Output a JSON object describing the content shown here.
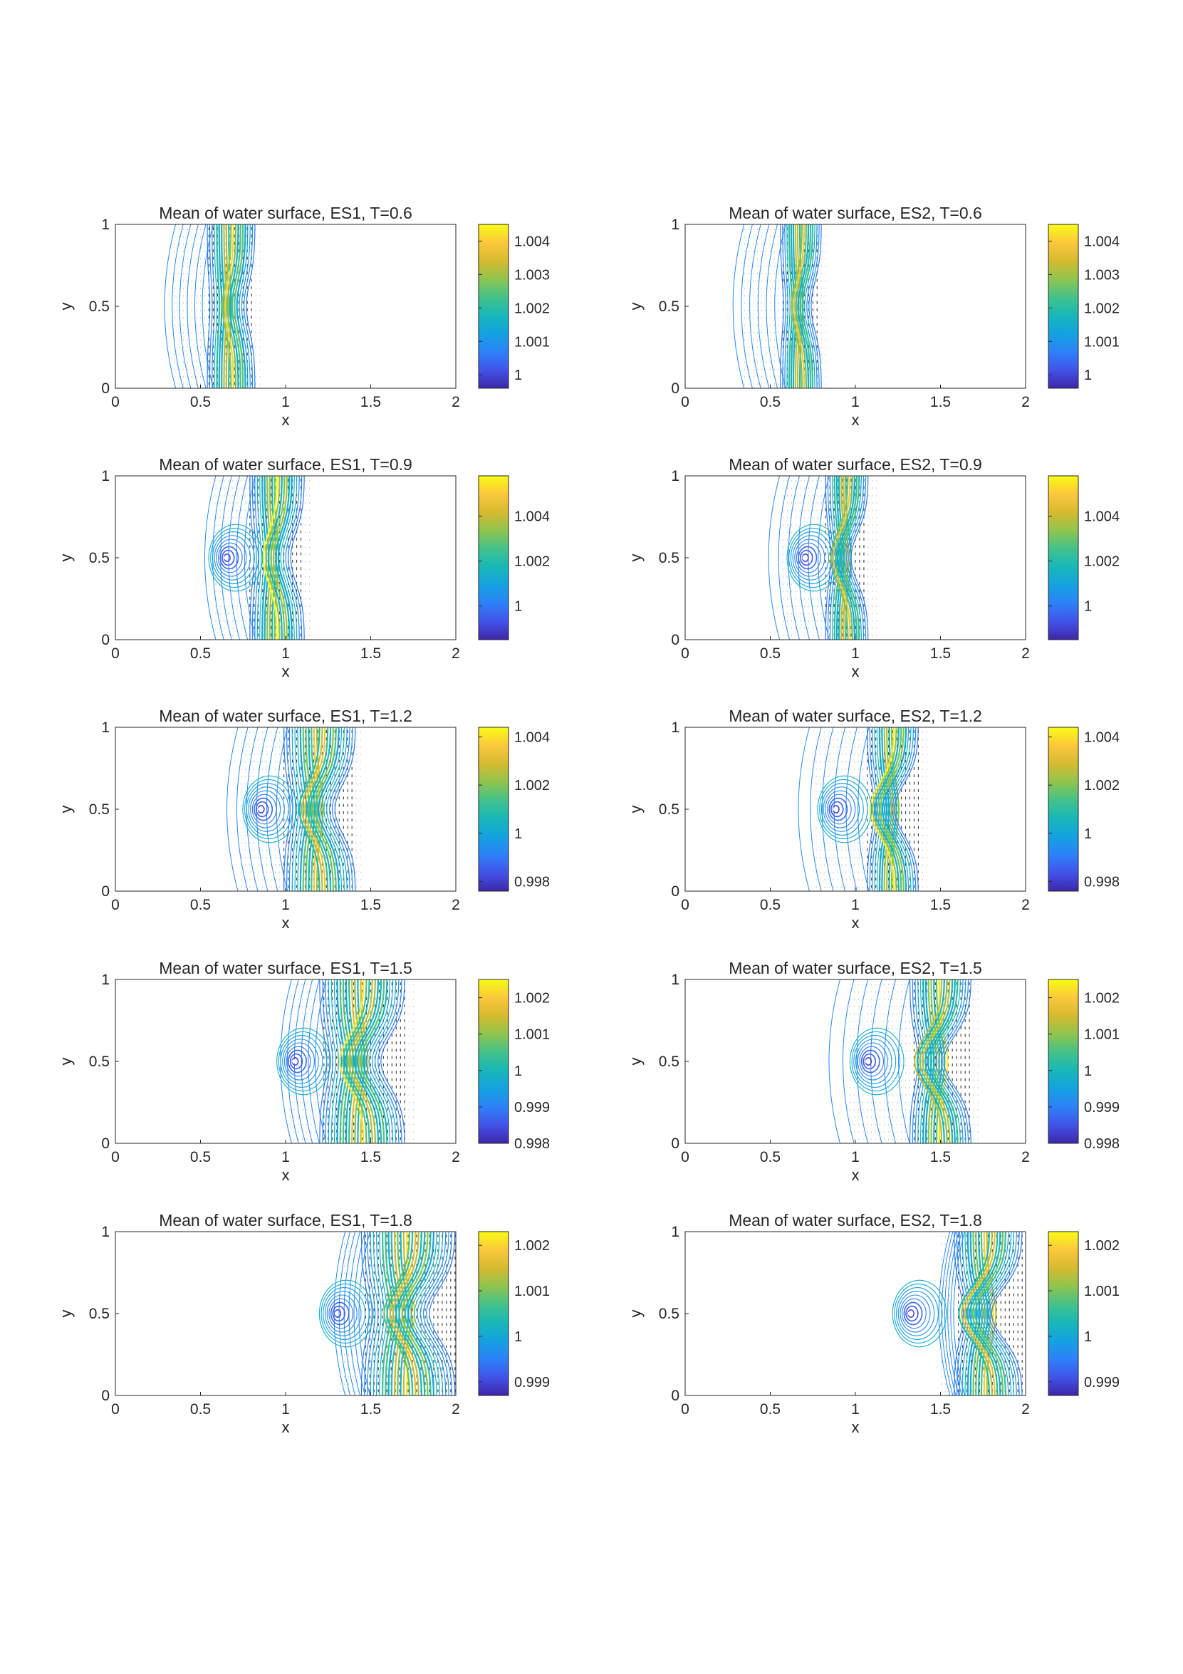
{
  "figure": {
    "label": "Mean of water surface contour plots"
  },
  "colormap": [
    "#3e26a8",
    "#4253e8",
    "#2d81f8",
    "#14a2e0",
    "#18b7b8",
    "#43c28a",
    "#90c44e",
    "#d6ba30",
    "#fbc83c",
    "#f9fb15"
  ],
  "chart_data": [
    {
      "type": "contour",
      "title": "Mean of water surface, ES1, T=0.6",
      "xlabel": "x",
      "ylabel": "y",
      "xlim": [
        0,
        2
      ],
      "ylim": [
        0,
        1
      ],
      "xticks": [
        "0",
        "0.5",
        "1",
        "1.5",
        "2"
      ],
      "yticks": [
        "0",
        "0.5",
        "1"
      ],
      "clim": [
        0.9996,
        1.0045
      ],
      "colorbar_ticks": [
        1,
        1.001,
        1.002,
        1.003,
        1.004
      ],
      "colorbar_tick_labels": [
        "1",
        "1.001",
        "1.002",
        "1.003",
        "1.004"
      ],
      "front_x": 0.68,
      "front_width": 0.28,
      "source_x": null,
      "curvature": 0.05,
      "left_extent": 0.38
    },
    {
      "type": "contour",
      "title": "Mean of water surface, ES2, T=0.6",
      "xlabel": "x",
      "ylabel": "y",
      "xlim": [
        0,
        2
      ],
      "ylim": [
        0,
        1
      ],
      "xticks": [
        "0",
        "0.5",
        "1",
        "1.5",
        "2"
      ],
      "yticks": [
        "0",
        "0.5",
        "1"
      ],
      "clim": [
        0.9996,
        1.0045
      ],
      "colorbar_ticks": [
        1,
        1.001,
        1.002,
        1.003,
        1.004
      ],
      "colorbar_tick_labels": [
        "1",
        "1.001",
        "1.002",
        "1.003",
        "1.004"
      ],
      "front_x": 0.68,
      "front_width": 0.24,
      "source_x": null,
      "curvature": 0.06,
      "left_extent": 0.42
    },
    {
      "type": "contour",
      "title": "Mean of water surface, ES1, T=0.9",
      "xlabel": "x",
      "ylabel": "y",
      "xlim": [
        0,
        2
      ],
      "ylim": [
        0,
        1
      ],
      "xticks": [
        "0",
        "0.5",
        "1",
        "1.5",
        "2"
      ],
      "yticks": [
        "0",
        "0.5",
        "1"
      ],
      "clim": [
        0.9985,
        1.0058
      ],
      "colorbar_ticks": [
        1,
        1.002,
        1.004
      ],
      "colorbar_tick_labels": [
        "1",
        "1.002",
        "1.004"
      ],
      "front_x": 0.95,
      "front_width": 0.32,
      "source_x": 0.65,
      "curvature": 0.08,
      "left_extent": 0.4
    },
    {
      "type": "contour",
      "title": "Mean of water surface, ES2, T=0.9",
      "xlabel": "x",
      "ylabel": "y",
      "xlim": [
        0,
        2
      ],
      "ylim": [
        0,
        1
      ],
      "xticks": [
        "0",
        "0.5",
        "1",
        "1.5",
        "2"
      ],
      "yticks": [
        "0",
        "0.5",
        "1"
      ],
      "clim": [
        0.9985,
        1.0058
      ],
      "colorbar_ticks": [
        1,
        1.002,
        1.004
      ],
      "colorbar_tick_labels": [
        "1",
        "1.002",
        "1.004"
      ],
      "front_x": 0.95,
      "front_width": 0.25,
      "source_x": 0.7,
      "curvature": 0.1,
      "left_extent": 0.5
    },
    {
      "type": "contour",
      "title": "Mean of water surface, ES1, T=1.2",
      "xlabel": "x",
      "ylabel": "y",
      "xlim": [
        0,
        2
      ],
      "ylim": [
        0,
        1
      ],
      "xticks": [
        "0",
        "0.5",
        "1",
        "1.5",
        "2"
      ],
      "yticks": [
        "0",
        "0.5",
        "1"
      ],
      "clim": [
        0.9976,
        1.0044
      ],
      "colorbar_ticks": [
        0.998,
        1,
        1.002,
        1.004
      ],
      "colorbar_tick_labels": [
        "0.998",
        "1",
        "1.002",
        "1.004"
      ],
      "front_x": 1.2,
      "front_width": 0.42,
      "source_x": 0.85,
      "curvature": 0.12,
      "left_extent": 0.5
    },
    {
      "type": "contour",
      "title": "Mean of water surface, ES2, T=1.2",
      "xlabel": "x",
      "ylabel": "y",
      "xlim": [
        0,
        2
      ],
      "ylim": [
        0,
        1
      ],
      "xticks": [
        "0",
        "0.5",
        "1",
        "1.5",
        "2"
      ],
      "yticks": [
        "0",
        "0.5",
        "1"
      ],
      "clim": [
        0.9976,
        1.0044
      ],
      "colorbar_ticks": [
        0.998,
        1,
        1.002,
        1.004
      ],
      "colorbar_tick_labels": [
        "0.998",
        "1",
        "1.002",
        "1.004"
      ],
      "front_x": 1.22,
      "front_width": 0.3,
      "source_x": 0.88,
      "curvature": 0.14,
      "left_extent": 0.6
    },
    {
      "type": "contour",
      "title": "Mean of water surface, ES1, T=1.5",
      "xlabel": "x",
      "ylabel": "y",
      "xlim": [
        0,
        2
      ],
      "ylim": [
        0,
        1
      ],
      "xticks": [
        "0",
        "0.5",
        "1",
        "1.5",
        "2"
      ],
      "yticks": [
        "0",
        "0.5",
        "1"
      ],
      "clim": [
        0.998,
        1.0025
      ],
      "colorbar_ticks": [
        0.998,
        0.999,
        1,
        1.001,
        1.002
      ],
      "colorbar_tick_labels": [
        "0.998",
        "0.999",
        "1",
        "1.001",
        "1.002"
      ],
      "front_x": 1.45,
      "front_width": 0.5,
      "source_x": 1.05,
      "curvature": 0.14,
      "left_extent": 0.35
    },
    {
      "type": "contour",
      "title": "Mean of water surface, ES2, T=1.5",
      "xlabel": "x",
      "ylabel": "y",
      "xlim": [
        0,
        2
      ],
      "ylim": [
        0,
        1
      ],
      "xticks": [
        "0",
        "0.5",
        "1",
        "1.5",
        "2"
      ],
      "yticks": [
        "0",
        "0.5",
        "1"
      ],
      "clim": [
        0.998,
        1.0025
      ],
      "colorbar_ticks": [
        0.998,
        0.999,
        1,
        1.001,
        1.002
      ],
      "colorbar_tick_labels": [
        "0.998",
        "0.999",
        "1",
        "1.001",
        "1.002"
      ],
      "front_x": 1.5,
      "front_width": 0.36,
      "source_x": 1.07,
      "curvature": 0.16,
      "left_extent": 0.7
    },
    {
      "type": "contour",
      "title": "Mean of water surface, ES1, T=1.8",
      "xlabel": "x",
      "ylabel": "y",
      "xlim": [
        0,
        2
      ],
      "ylim": [
        0,
        1
      ],
      "xticks": [
        "0",
        "0.5",
        "1",
        "1.5",
        "2"
      ],
      "yticks": [
        "0",
        "0.5",
        "1"
      ],
      "clim": [
        0.9987,
        1.0023
      ],
      "colorbar_ticks": [
        0.999,
        1,
        1.001,
        1.002
      ],
      "colorbar_tick_labels": [
        "0.999",
        "1",
        "1.001",
        "1.002"
      ],
      "front_x": 1.72,
      "front_width": 0.55,
      "source_x": 1.3,
      "curvature": 0.15,
      "left_extent": 0.25
    },
    {
      "type": "contour",
      "title": "Mean of water surface, ES2, T=1.8",
      "xlabel": "x",
      "ylabel": "y",
      "xlim": [
        0,
        2
      ],
      "ylim": [
        0,
        1
      ],
      "xticks": [
        "0",
        "0.5",
        "1",
        "1.5",
        "2"
      ],
      "yticks": [
        "0",
        "0.5",
        "1"
      ],
      "clim": [
        0.9987,
        1.0023
      ],
      "colorbar_ticks": [
        0.999,
        1,
        1.001,
        1.002
      ],
      "colorbar_tick_labels": [
        "0.999",
        "1",
        "1.001",
        "1.002"
      ],
      "front_x": 1.78,
      "front_width": 0.4,
      "source_x": 1.32,
      "curvature": 0.18,
      "left_extent": 0.15
    }
  ]
}
